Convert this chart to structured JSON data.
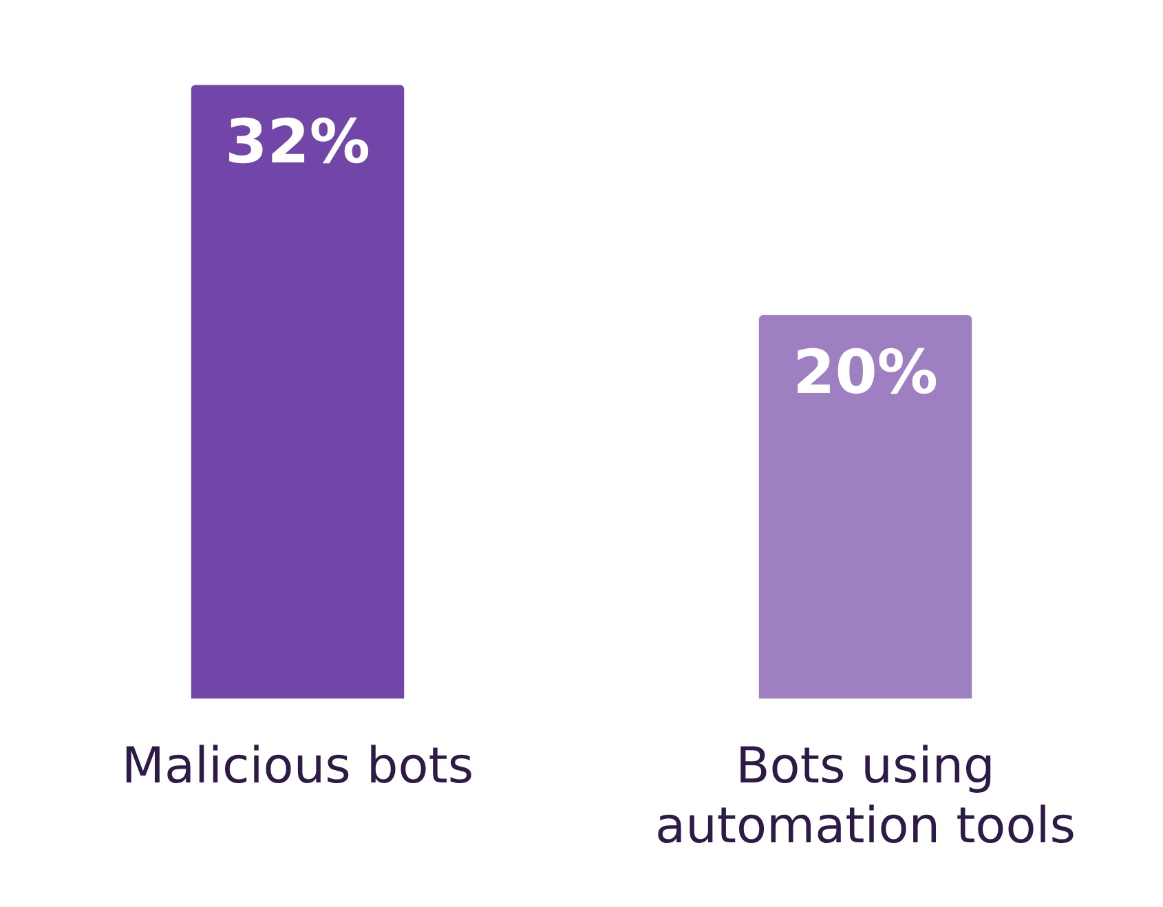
{
  "chart_data": {
    "type": "bar",
    "categories": [
      "Malicious bots",
      "Bots using automation tools"
    ],
    "values": [
      32,
      20
    ],
    "colors": [
      "#7245a8",
      "#9e7fc2"
    ],
    "value_labels": [
      "32%",
      "20%"
    ],
    "grid": false
  }
}
